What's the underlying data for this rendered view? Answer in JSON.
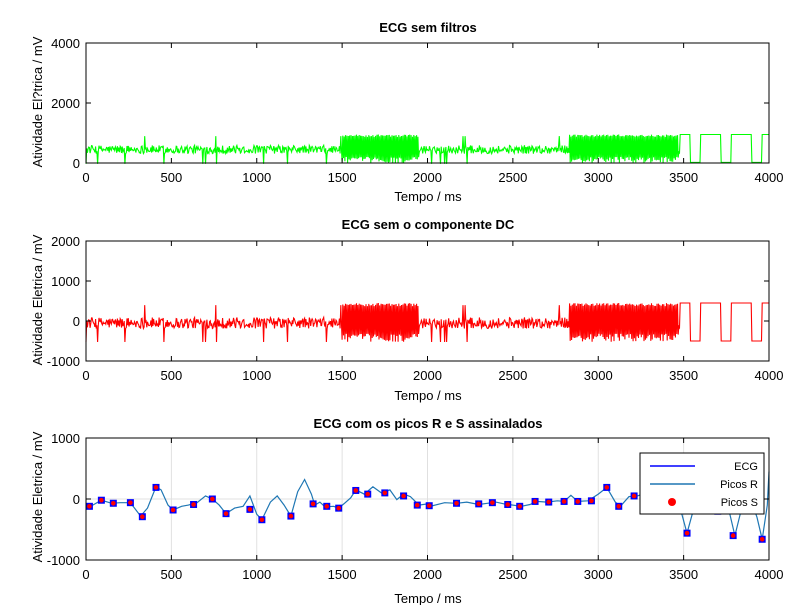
{
  "chart_data": [
    {
      "type": "line",
      "title": "ECG sem filtros",
      "xlabel": "Tempo / ms",
      "ylabel": "Atividade El?trica / mV",
      "xlim": [
        0,
        4000
      ],
      "ylim": [
        0,
        4000
      ],
      "xticks": [
        0,
        500,
        1000,
        1500,
        2000,
        2500,
        3000,
        3500,
        4000
      ],
      "yticks": [
        0,
        2000,
        4000
      ],
      "grid": false,
      "color": "#00ff00",
      "baseline": 450,
      "amplitude": 280,
      "dense_segments": [
        [
          1500,
          1950,
          0,
          950
        ],
        [
          2830,
          3470,
          0,
          950
        ]
      ],
      "square_segments": [
        [
          3480,
          4000,
          0,
          950
        ]
      ]
    },
    {
      "type": "line",
      "title": "ECG sem o componente DC",
      "xlabel": "Tempo / ms",
      "ylabel": "Atividade Eletrica / mV",
      "xlim": [
        0,
        4000
      ],
      "ylim": [
        -1000,
        2000
      ],
      "xticks": [
        0,
        500,
        1000,
        1500,
        2000,
        2500,
        3000,
        3500,
        4000
      ],
      "yticks": [
        -1000,
        0,
        1000,
        2000
      ],
      "grid": false,
      "color": "#ff0000",
      "baseline": -50,
      "amplitude": 280,
      "dense_segments": [
        [
          1500,
          1950,
          -520,
          450
        ],
        [
          2830,
          3470,
          -520,
          450
        ]
      ],
      "square_segments": [
        [
          3480,
          4000,
          -520,
          450
        ]
      ]
    },
    {
      "type": "line",
      "title": "ECG com os picos R e S assinalados",
      "xlabel": "Tempo / ms",
      "ylabel": "Atividade Eletrica / mV",
      "xlim": [
        0,
        4000
      ],
      "ylim": [
        -1000,
        1000
      ],
      "xticks": [
        0,
        500,
        1000,
        1500,
        2000,
        2500,
        3000,
        3500,
        4000
      ],
      "yticks": [
        -1000,
        0,
        1000
      ],
      "grid": true,
      "legend_position": "top-right",
      "series": [
        {
          "name": "ECG",
          "color": "#0000ff",
          "kind": "line"
        },
        {
          "name": "Picos R",
          "color": "#1f77b4",
          "kind": "line"
        },
        {
          "name": "Picos S",
          "color": "#ff0000",
          "kind": "scatter"
        }
      ],
      "ecg_points": [
        [
          0,
          -120
        ],
        [
          40,
          -100
        ],
        [
          90,
          -20
        ],
        [
          150,
          -70
        ],
        [
          200,
          -60
        ],
        [
          260,
          -60
        ],
        [
          320,
          -280
        ],
        [
          360,
          -150
        ],
        [
          410,
          200
        ],
        [
          440,
          150
        ],
        [
          480,
          -100
        ],
        [
          510,
          -180
        ],
        [
          560,
          -120
        ],
        [
          600,
          -100
        ],
        [
          650,
          -60
        ],
        [
          700,
          50
        ],
        [
          740,
          0
        ],
        [
          780,
          -100
        ],
        [
          820,
          -240
        ],
        [
          870,
          -150
        ],
        [
          920,
          -120
        ],
        [
          960,
          50
        ],
        [
          1000,
          -250
        ],
        [
          1030,
          -340
        ],
        [
          1080,
          -50
        ],
        [
          1120,
          50
        ],
        [
          1160,
          -100
        ],
        [
          1200,
          -280
        ],
        [
          1240,
          120
        ],
        [
          1280,
          320
        ],
        [
          1320,
          80
        ],
        [
          1340,
          -100
        ],
        [
          1370,
          -50
        ],
        [
          1400,
          -130
        ],
        [
          1450,
          -120
        ],
        [
          1480,
          -150
        ],
        [
          1510,
          -80
        ],
        [
          1550,
          20
        ],
        [
          1580,
          150
        ],
        [
          1630,
          80
        ],
        [
          1680,
          200
        ],
        [
          1730,
          100
        ],
        [
          1780,
          150
        ],
        [
          1820,
          -10
        ],
        [
          1860,
          80
        ],
        [
          1900,
          40
        ],
        [
          1950,
          -100
        ],
        [
          2000,
          -80
        ],
        [
          2030,
          -110
        ],
        [
          2100,
          -60
        ],
        [
          2170,
          -70
        ],
        [
          2230,
          -50
        ],
        [
          2300,
          -90
        ],
        [
          2350,
          -70
        ],
        [
          2400,
          -50
        ],
        [
          2450,
          -80
        ],
        [
          2500,
          -100
        ],
        [
          2550,
          -120
        ],
        [
          2600,
          -90
        ],
        [
          2640,
          -40
        ],
        [
          2700,
          -50
        ],
        [
          2760,
          -30
        ],
        [
          2800,
          -40
        ],
        [
          2840,
          60
        ],
        [
          2880,
          -40
        ],
        [
          2940,
          -30
        ],
        [
          3000,
          80
        ],
        [
          3050,
          190
        ],
        [
          3100,
          -50
        ],
        [
          3130,
          -120
        ],
        [
          3180,
          40
        ],
        [
          3230,
          50
        ],
        [
          3280,
          100
        ],
        [
          3320,
          50
        ],
        [
          3380,
          160
        ],
        [
          3430,
          30
        ],
        [
          3480,
          -150
        ],
        [
          3520,
          -560
        ],
        [
          3560,
          -150
        ],
        [
          3600,
          80
        ],
        [
          3640,
          -120
        ],
        [
          3680,
          -200
        ],
        [
          3720,
          -180
        ],
        [
          3760,
          -120
        ],
        [
          3800,
          -600
        ],
        [
          3840,
          -150
        ],
        [
          3880,
          100
        ],
        [
          3930,
          -300
        ],
        [
          3960,
          -660
        ],
        [
          3990,
          -100
        ],
        [
          4000,
          450
        ]
      ],
      "peaks": [
        [
          20,
          -120
        ],
        [
          90,
          -20
        ],
        [
          160,
          -70
        ],
        [
          260,
          -60
        ],
        [
          330,
          -290
        ],
        [
          410,
          190
        ],
        [
          510,
          -180
        ],
        [
          630,
          -90
        ],
        [
          740,
          0
        ],
        [
          820,
          -240
        ],
        [
          960,
          -170
        ],
        [
          1030,
          -340
        ],
        [
          1200,
          -280
        ],
        [
          1330,
          -80
        ],
        [
          1410,
          -120
        ],
        [
          1480,
          -150
        ],
        [
          1580,
          140
        ],
        [
          1650,
          80
        ],
        [
          1750,
          100
        ],
        [
          1860,
          50
        ],
        [
          1940,
          -100
        ],
        [
          2010,
          -110
        ],
        [
          2170,
          -70
        ],
        [
          2300,
          -80
        ],
        [
          2380,
          -60
        ],
        [
          2470,
          -90
        ],
        [
          2540,
          -120
        ],
        [
          2630,
          -40
        ],
        [
          2710,
          -50
        ],
        [
          2800,
          -40
        ],
        [
          2880,
          -40
        ],
        [
          2960,
          -30
        ],
        [
          3050,
          190
        ],
        [
          3120,
          -120
        ],
        [
          3210,
          50
        ],
        [
          3280,
          100
        ],
        [
          3330,
          40
        ],
        [
          3380,
          160
        ],
        [
          3520,
          -560
        ],
        [
          3640,
          -130
        ],
        [
          3700,
          -200
        ],
        [
          3790,
          -600
        ],
        [
          3960,
          -660
        ]
      ]
    }
  ]
}
